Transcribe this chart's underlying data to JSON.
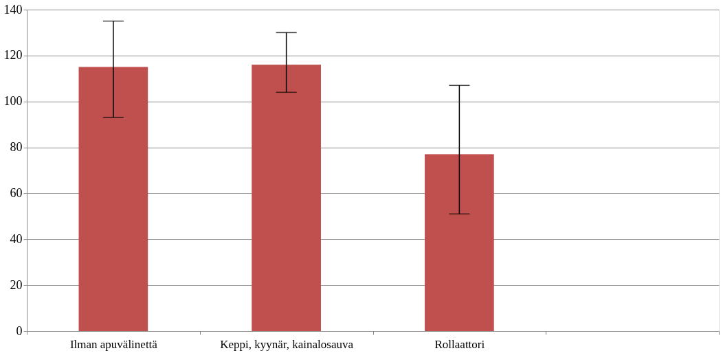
{
  "chart_data": {
    "type": "bar",
    "categories": [
      "Ilman apuvälinettä",
      "Keppi, kyynär, kainalosauva",
      "Rollaattori",
      null
    ],
    "values": [
      115,
      116,
      77,
      null
    ],
    "errors": [
      [
        93,
        135
      ],
      [
        104,
        130
      ],
      [
        51,
        107
      ],
      null
    ],
    "color": "#c0504d",
    "ylim": [
      0,
      140
    ],
    "yticks": [
      0,
      20,
      40,
      60,
      80,
      100,
      120,
      140
    ],
    "grid": "y"
  }
}
